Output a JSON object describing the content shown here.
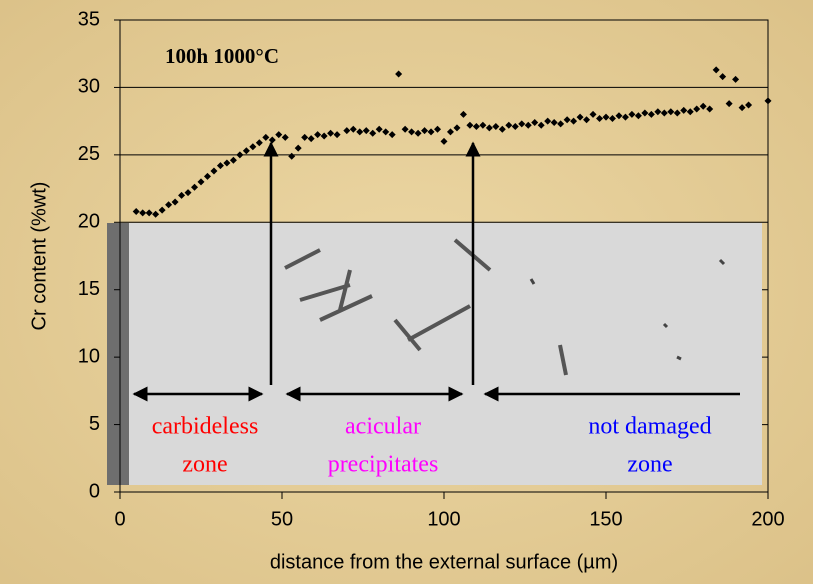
{
  "chart_data": {
    "type": "scatter",
    "title": "100h 1000°C",
    "x_label": "distance from the external surface (µm)",
    "y_label": "Cr content (%wt)",
    "xlim": [
      0,
      200
    ],
    "xticks": [
      0,
      50,
      100,
      150,
      200
    ],
    "ylim": [
      0,
      35
    ],
    "yticks": [
      0,
      5,
      10,
      15,
      20,
      25,
      30,
      35
    ],
    "grid": true,
    "color": "#000000",
    "x": [
      5,
      7,
      9,
      11,
      13,
      15,
      17,
      19,
      21,
      23,
      25,
      27,
      29,
      31,
      33,
      35,
      37,
      39,
      41,
      43,
      45,
      47,
      49,
      51,
      53,
      55,
      57,
      59,
      61,
      63,
      65,
      67,
      70,
      72,
      74,
      76,
      78,
      80,
      82,
      84,
      86,
      88,
      90,
      92,
      94,
      96,
      98,
      100,
      102,
      104,
      106,
      108,
      110,
      112,
      114,
      116,
      118,
      120,
      122,
      124,
      126,
      128,
      130,
      132,
      134,
      136,
      138,
      140,
      142,
      144,
      146,
      148,
      150,
      152,
      154,
      156,
      158,
      160,
      162,
      164,
      166,
      168,
      170,
      172,
      174,
      176,
      178,
      180,
      182,
      184,
      186,
      188,
      190,
      192,
      194,
      200
    ],
    "values": [
      20.8,
      20.7,
      20.7,
      20.6,
      20.9,
      21.3,
      21.5,
      22,
      22.2,
      22.6,
      23,
      23.4,
      23.8,
      24.2,
      24.4,
      24.6,
      25,
      25.3,
      25.6,
      25.9,
      26.3,
      26.1,
      26.5,
      26.3,
      24.9,
      25.5,
      26.3,
      26.2,
      26.5,
      26.4,
      26.6,
      26.5,
      26.8,
      26.9,
      26.7,
      26.8,
      26.6,
      26.9,
      26.7,
      26.5,
      31,
      26.9,
      26.7,
      26.6,
      26.8,
      26.7,
      26.9,
      26,
      26.7,
      27,
      28,
      27.2,
      27.1,
      27.2,
      27,
      27.1,
      26.9,
      27.2,
      27.1,
      27.3,
      27.2,
      27.4,
      27.2,
      27.5,
      27.4,
      27.3,
      27.6,
      27.5,
      27.8,
      27.6,
      28,
      27.7,
      27.8,
      27.7,
      27.9,
      27.8,
      28,
      27.9,
      28.1,
      28,
      28.2,
      28.1,
      28.2,
      28.1,
      28.3,
      28.2,
      28.4,
      28.6,
      28.4,
      31.3,
      30.8,
      28.8,
      30.6,
      28.5,
      28.7,
      29
    ],
    "annotations": [
      {
        "lines": [
          "carbideless",
          "zone"
        ],
        "color": "#ff0000"
      },
      {
        "lines": [
          "acicular",
          "precipitates"
        ],
        "color": "#ff00ff"
      },
      {
        "lines": [
          "not damaged",
          "zone"
        ],
        "color": "#0000ff"
      }
    ]
  }
}
